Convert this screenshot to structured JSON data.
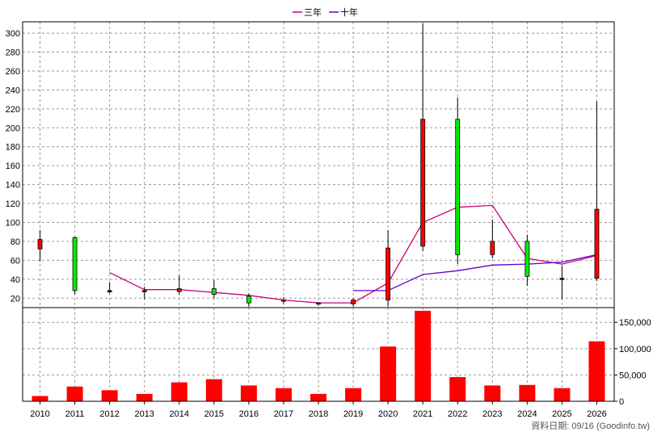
{
  "legend": [
    {
      "label": "三年",
      "color": "#cc0077"
    },
    {
      "label": "十年",
      "color": "#6600cc"
    }
  ],
  "footer": "資料日期: 09/16 (Goodinfo.tw)",
  "colors": {
    "up": "#ff0000",
    "down": "#00ee00",
    "volume": "#ff0000",
    "wick": "#000000"
  },
  "chart_data": [
    {
      "type": "candlestick",
      "categories": [
        "2010",
        "2011",
        "2012",
        "2013",
        "2014",
        "2015",
        "2016",
        "2017",
        "2018",
        "2019",
        "2020",
        "2021",
        "2022",
        "2023",
        "2024",
        "2025",
        "2026"
      ],
      "ylim": [
        10,
        312
      ],
      "yticks": [
        20,
        40,
        60,
        80,
        100,
        120,
        140,
        160,
        180,
        200,
        220,
        240,
        260,
        280,
        300
      ],
      "grid": true,
      "candles": [
        {
          "x": "2010",
          "open": 72,
          "close": 82,
          "high": 92,
          "low": 59
        },
        {
          "x": "2011",
          "open": 84,
          "close": 28,
          "high": 85,
          "low": 24
        },
        {
          "x": "2012",
          "open": 28,
          "close": 28,
          "high": 37,
          "low": 25
        },
        {
          "x": "2013",
          "open": 27,
          "close": 28,
          "high": 32,
          "low": 19
        },
        {
          "x": "2014",
          "open": 27,
          "close": 30,
          "high": 44,
          "low": 24
        },
        {
          "x": "2015",
          "open": 30,
          "close": 24,
          "high": 39,
          "low": 20
        },
        {
          "x": "2016",
          "open": 22,
          "close": 15,
          "high": 25,
          "low": 11
        },
        {
          "x": "2017",
          "open": 17,
          "close": 18,
          "high": 21,
          "low": 14
        },
        {
          "x": "2018",
          "open": 14,
          "close": 15,
          "high": 16,
          "low": 12
        },
        {
          "x": "2019",
          "open": 14,
          "close": 18,
          "high": 20,
          "low": 11
        },
        {
          "x": "2020",
          "open": 18,
          "close": 73,
          "high": 92,
          "low": 11
        },
        {
          "x": "2021",
          "open": 75,
          "close": 209,
          "high": 310,
          "low": 70
        },
        {
          "x": "2022",
          "open": 209,
          "close": 66,
          "high": 232,
          "low": 56
        },
        {
          "x": "2023",
          "open": 66,
          "close": 80,
          "high": 103,
          "low": 62
        },
        {
          "x": "2024",
          "open": 80,
          "close": 43,
          "high": 87,
          "low": 33
        },
        {
          "x": "2025",
          "open": 41,
          "close": 41,
          "high": 54,
          "low": 19
        },
        {
          "x": "2026",
          "open": 41,
          "close": 114,
          "high": 228,
          "low": 38
        }
      ],
      "series": [
        {
          "name": "三年",
          "x": [
            "2012",
            "2013",
            "2014",
            "2015",
            "2016",
            "2017",
            "2018",
            "2019",
            "2020",
            "2021",
            "2022",
            "2023",
            "2024",
            "2025",
            "2026"
          ],
          "values": [
            47,
            29,
            29,
            26,
            23,
            18,
            15,
            15,
            36,
            100,
            116,
            118,
            62,
            56,
            65
          ]
        },
        {
          "name": "十年",
          "x": [
            "2019",
            "2020",
            "2021",
            "2022",
            "2023",
            "2024",
            "2025",
            "2026"
          ],
          "values": [
            28,
            28,
            45,
            49,
            55,
            56,
            58,
            66
          ]
        }
      ]
    },
    {
      "type": "bar",
      "categories": [
        "2010",
        "2011",
        "2012",
        "2013",
        "2014",
        "2015",
        "2016",
        "2017",
        "2018",
        "2019",
        "2020",
        "2021",
        "2022",
        "2023",
        "2024",
        "2025",
        "2026"
      ],
      "values": [
        10000,
        28000,
        21000,
        14000,
        36000,
        42000,
        30000,
        25000,
        14000,
        25000,
        104000,
        172000,
        46000,
        30000,
        31000,
        25000,
        114000
      ],
      "ylim": [
        0,
        178000
      ],
      "yticks": [
        0,
        50000,
        100000,
        150000
      ],
      "ytick_labels": [
        "0",
        "50,000",
        "100,000",
        "150,000"
      ],
      "grid": true
    }
  ]
}
